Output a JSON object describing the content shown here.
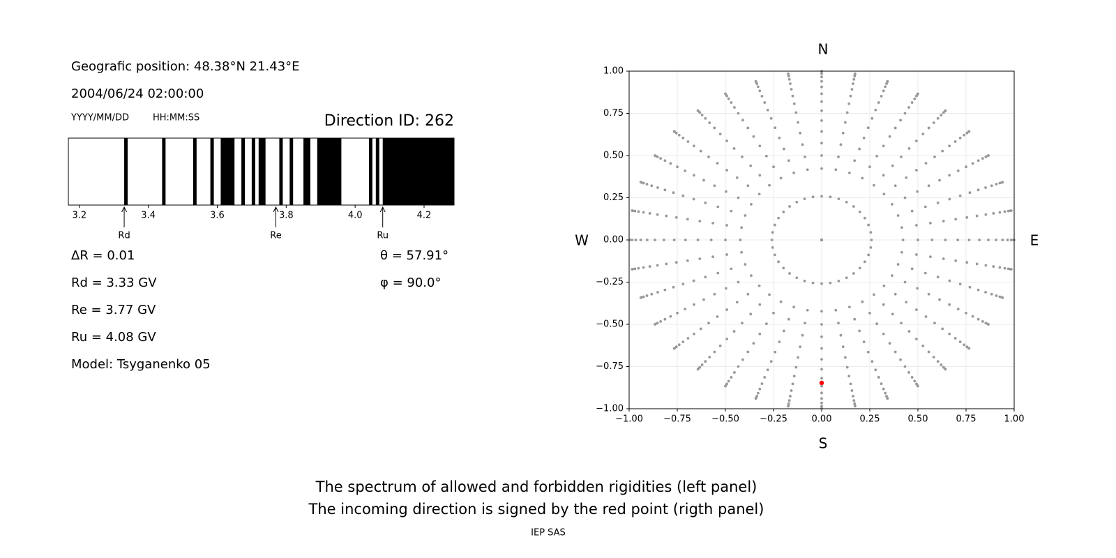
{
  "chart_data": [
    {
      "type": "spectrum",
      "position_text": "Geografic position: 48.38°N 21.43°E",
      "datetime": "2004/06/24 02:00:00",
      "date_format": "YYYY/MM/DD",
      "time_format": "HH:MM:SS",
      "title": "Direction ID: 262",
      "xlim": [
        3.168,
        4.287
      ],
      "xticks": [
        3.2,
        3.4,
        3.6,
        3.8,
        {
          "value": 4,
          "label": "4.0"
        },
        4.2
      ],
      "band_color": "#000000",
      "forbidden_bands": [
        [
          3.33,
          3.34
        ],
        [
          3.44,
          3.45
        ],
        [
          3.53,
          3.54
        ],
        [
          3.58,
          3.59
        ],
        [
          3.61,
          3.65
        ],
        [
          3.67,
          3.68
        ],
        [
          3.7,
          3.71
        ],
        [
          3.72,
          3.74
        ],
        [
          3.78,
          3.79
        ],
        [
          3.81,
          3.82
        ],
        [
          3.85,
          3.87
        ],
        [
          3.89,
          3.96
        ],
        [
          4.04,
          4.05
        ],
        [
          4.06,
          4.07
        ],
        [
          4.08,
          4.287
        ]
      ],
      "markers": [
        {
          "label": "Rd",
          "value": 3.33
        },
        {
          "label": "Re",
          "value": 3.77
        },
        {
          "label": "Ru",
          "value": 4.08
        }
      ],
      "info_left": [
        "ΔR = 0.01",
        "Rd = 3.33 GV",
        "Re = 3.77 GV",
        "Ru = 4.08 GV",
        "Model: Tsyganenko 05"
      ],
      "info_right": [
        "θ = 57.91°",
        "φ = 90.0°"
      ]
    },
    {
      "type": "scatter",
      "compass": {
        "north": "N",
        "south": "S",
        "west": "W",
        "east": "E"
      },
      "xlim": [
        -1,
        1
      ],
      "ylim": [
        -1,
        1
      ],
      "xticks": [
        {
          "value": -1,
          "label": "−1.00"
        },
        {
          "value": -0.75,
          "label": "−0.75"
        },
        {
          "value": -0.5,
          "label": "−0.50"
        },
        {
          "value": -0.25,
          "label": "−0.25"
        },
        {
          "value": 0,
          "label": "0.00"
        },
        {
          "value": 0.25,
          "label": "0.25"
        },
        {
          "value": 0.5,
          "label": "0.50"
        },
        {
          "value": 0.75,
          "label": "0.75"
        },
        {
          "value": 1,
          "label": "1.00"
        }
      ],
      "yticks": [
        {
          "value": -1,
          "label": "−1.00"
        },
        {
          "value": -0.75,
          "label": "−0.75"
        },
        {
          "value": -0.5,
          "label": "−0.50"
        },
        {
          "value": -0.25,
          "label": "−0.25"
        },
        {
          "value": 0,
          "label": "0.00"
        },
        {
          "value": 0.25,
          "label": "0.25"
        },
        {
          "value": 0.5,
          "label": "0.50"
        },
        {
          "value": 0.75,
          "label": "0.75"
        },
        {
          "value": 1,
          "label": "1.00"
        }
      ],
      "grid": true,
      "directions": {
        "color": "#999999",
        "zenith_angles": [
          0,
          15,
          25,
          30,
          35,
          40,
          45,
          50,
          55,
          60,
          65,
          70,
          75,
          80,
          85,
          90
        ],
        "azimuths": [
          0,
          10,
          20,
          30,
          40,
          50,
          60,
          70,
          80,
          90,
          100,
          110,
          120,
          130,
          140,
          150,
          160,
          170,
          180,
          190,
          200,
          210,
          220,
          230,
          240,
          250,
          260,
          270,
          280,
          290,
          300,
          310,
          320,
          330,
          340,
          350
        ]
      },
      "selected": {
        "x": 0,
        "y": -0.847,
        "color": "#ff0000"
      }
    }
  ],
  "caption": [
    "The spectrum of allowed and forbidden rigidities (left panel)",
    "The incoming direction is signed by the red point (rigth panel)"
  ],
  "footer": "IEP SAS"
}
